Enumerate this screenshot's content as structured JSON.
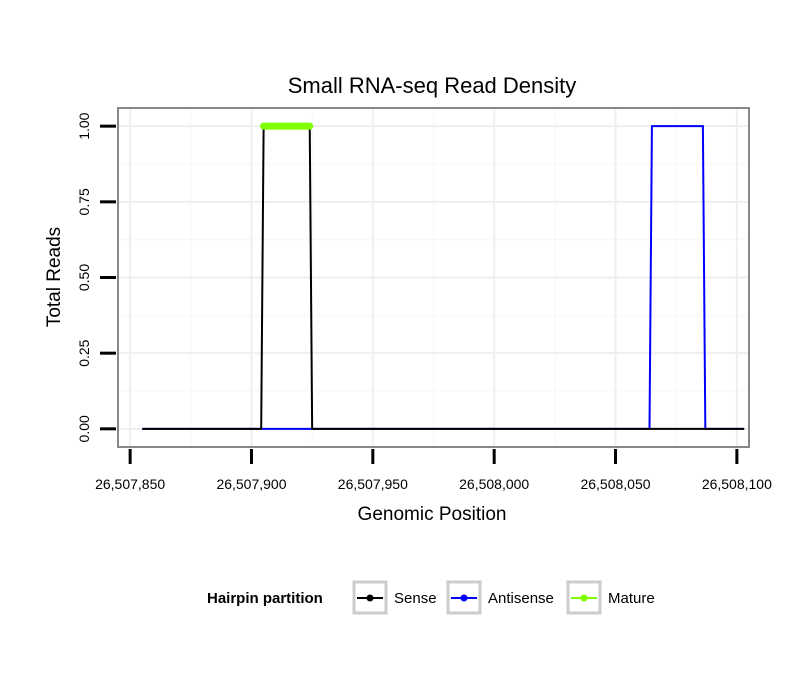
{
  "chart_data": {
    "type": "line",
    "title": "Small RNA-seq Read Density",
    "xlabel": "Genomic Position",
    "ylabel": "Total Reads",
    "xlim": [
      26507845,
      26508105
    ],
    "ylim": [
      -0.06,
      1.06
    ],
    "x_ticks": [
      26507850,
      26507900,
      26507950,
      26508000,
      26508050,
      26508100
    ],
    "x_tick_labels": [
      "26,507,850",
      "26,507,900",
      "26,507,950",
      "26,508,000",
      "26,508,050",
      "26,508,100"
    ],
    "y_ticks": [
      0,
      0.25,
      0.5,
      0.75,
      1.0
    ],
    "y_tick_labels": [
      "0.00",
      "0.25",
      "0.50",
      "0.75",
      "1.00"
    ],
    "grid": true,
    "legend": {
      "title": "Hairpin partition",
      "position": "bottom",
      "entries": [
        {
          "name": "Sense",
          "color": "#000000"
        },
        {
          "name": "Antisense",
          "color": "#0000ff"
        },
        {
          "name": "Mature",
          "color": "#7fff00"
        }
      ]
    },
    "series": [
      {
        "name": "Sense",
        "color": "#000000",
        "x": [
          26507855,
          26507904,
          26507905,
          26507924,
          26507925,
          26508103
        ],
        "y": [
          0,
          0,
          1,
          1,
          0,
          0
        ]
      },
      {
        "name": "Antisense",
        "color": "#0000ff",
        "x": [
          26507855,
          26508064,
          26508065,
          26508086,
          26508087,
          26508103
        ],
        "y": [
          0,
          0,
          1,
          1,
          0,
          0
        ]
      },
      {
        "name": "Mature",
        "color": "#7fff00",
        "x": [
          26507905,
          26507924
        ],
        "y": [
          1,
          1
        ]
      }
    ]
  }
}
